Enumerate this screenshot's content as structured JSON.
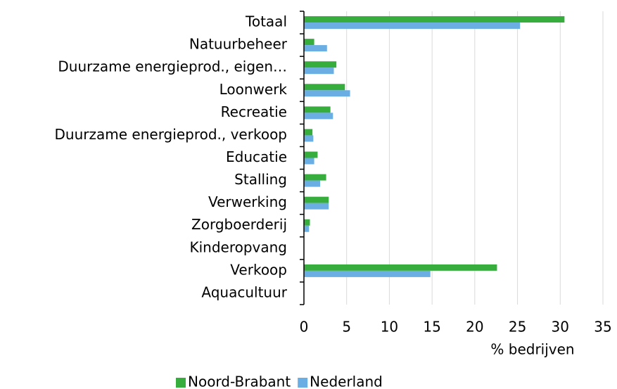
{
  "chart_data": {
    "type": "bar",
    "orientation": "horizontal",
    "categories": [
      "Totaal",
      "Natuurbeheer",
      "Duurzame energieprod., eigen…",
      "Loonwerk",
      "Recreatie",
      "Duurzame energieprod., verkoop",
      "Educatie",
      "Stalling",
      "Verwerking",
      "Zorgboerderij",
      "Kinderopvang",
      "Verkoop",
      "Aquacultuur"
    ],
    "series": [
      {
        "name": "Noord-Brabant",
        "color": "#36ad3c",
        "values": [
          30.5,
          1.2,
          3.8,
          4.8,
          3.1,
          1.0,
          1.6,
          2.6,
          2.9,
          0.7,
          0,
          22.6,
          0
        ]
      },
      {
        "name": "Nederland",
        "color": "#6aaee3",
        "values": [
          25.3,
          2.7,
          3.5,
          5.4,
          3.4,
          1.1,
          1.2,
          1.9,
          2.9,
          0.6,
          0,
          14.8,
          0
        ]
      }
    ],
    "xlabel": "% bedrijven",
    "xlim": [
      0,
      35
    ],
    "xticks": [
      0,
      5,
      10,
      15,
      20,
      25,
      30,
      35
    ],
    "grid": true,
    "legend": "bottom"
  }
}
